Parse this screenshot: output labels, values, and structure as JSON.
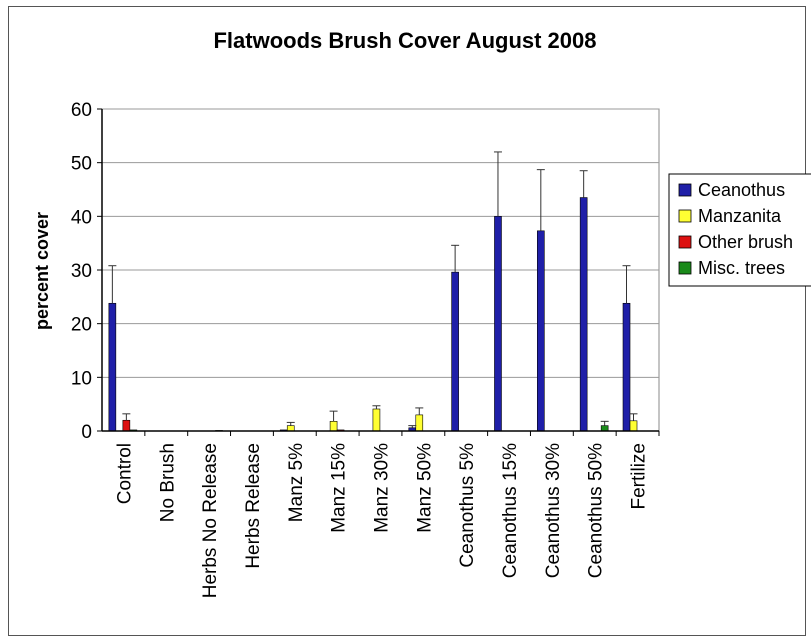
{
  "chart_data": {
    "type": "bar",
    "title": "Flatwoods Brush Cover August 2008",
    "xlabel": "",
    "ylabel": "percent cover",
    "ylim": [
      0,
      60
    ],
    "yticks": [
      0,
      10,
      20,
      30,
      40,
      50,
      60
    ],
    "grid": true,
    "legend_position": "right",
    "categories": [
      "Control",
      "No Brush",
      "Herbs No Release",
      "Herbs Release",
      "Manz 5%",
      "Manz 15%",
      "Manz 30%",
      "Manz 50%",
      "Ceanothus 5%",
      "Ceanothus 15%",
      "Ceanothus 30%",
      "Ceanothus 50%",
      "Fertilize"
    ],
    "series": [
      {
        "name": "Ceanothus",
        "color": "#1f1fa8",
        "values": [
          23.8,
          0,
          0,
          0,
          0.2,
          0,
          0,
          0.6,
          29.6,
          40.0,
          37.3,
          43.5,
          23.8
        ],
        "errors": [
          7.0,
          0,
          0,
          0,
          0,
          0,
          0,
          0.4,
          5.0,
          12.0,
          11.4,
          5.0,
          7.0
        ]
      },
      {
        "name": "Manzanita",
        "color": "#ffff33",
        "values": [
          0,
          0,
          0,
          0,
          1.0,
          1.8,
          4.1,
          3.0,
          0,
          0,
          0,
          0,
          1.9
        ],
        "errors": [
          0,
          0,
          0,
          0,
          0.6,
          1.9,
          0.6,
          1.3,
          0,
          0,
          0,
          0,
          1.3
        ]
      },
      {
        "name": "Other brush",
        "color": "#dd1111",
        "values": [
          2.0,
          0,
          0,
          0,
          0,
          0.2,
          0,
          0,
          0,
          0,
          0,
          0,
          0
        ],
        "errors": [
          1.2,
          0,
          0,
          0,
          0,
          0,
          0,
          0,
          0,
          0,
          0,
          0,
          0
        ]
      },
      {
        "name": "Misc. trees",
        "color": "#1a8a1a",
        "values": [
          0.2,
          0,
          0.1,
          0,
          0,
          0,
          0,
          0,
          0,
          0,
          0,
          1.0,
          0
        ],
        "errors": [
          0,
          0,
          0,
          0,
          0,
          0,
          0,
          0,
          0,
          0,
          0,
          0.8,
          0
        ]
      }
    ]
  }
}
